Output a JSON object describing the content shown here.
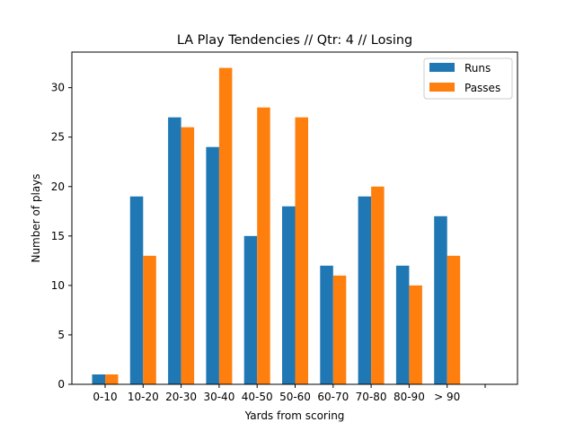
{
  "chart_data": {
    "type": "bar",
    "title": "LA Play Tendencies // Qtr: 4 // Losing",
    "xlabel": "Yards from scoring",
    "ylabel": "Number of plays",
    "categories": [
      "0-10",
      "10-20",
      "20-30",
      "30-40",
      "40-50",
      "50-60",
      "60-70",
      "70-80",
      "80-90",
      "> 90",
      ""
    ],
    "series": [
      {
        "name": "Runs",
        "color": "#1f77b4",
        "values": [
          1,
          19,
          27,
          24,
          15,
          18,
          12,
          19,
          12,
          17,
          0
        ]
      },
      {
        "name": "Passes",
        "color": "#ff7f0e",
        "values": [
          1,
          13,
          26,
          32,
          28,
          27,
          11,
          20,
          10,
          13,
          0
        ]
      }
    ],
    "ylim": [
      0,
      33.6
    ],
    "yticks": [
      0,
      5,
      10,
      15,
      20,
      25,
      30
    ],
    "grid": false,
    "legend": "top-right"
  }
}
